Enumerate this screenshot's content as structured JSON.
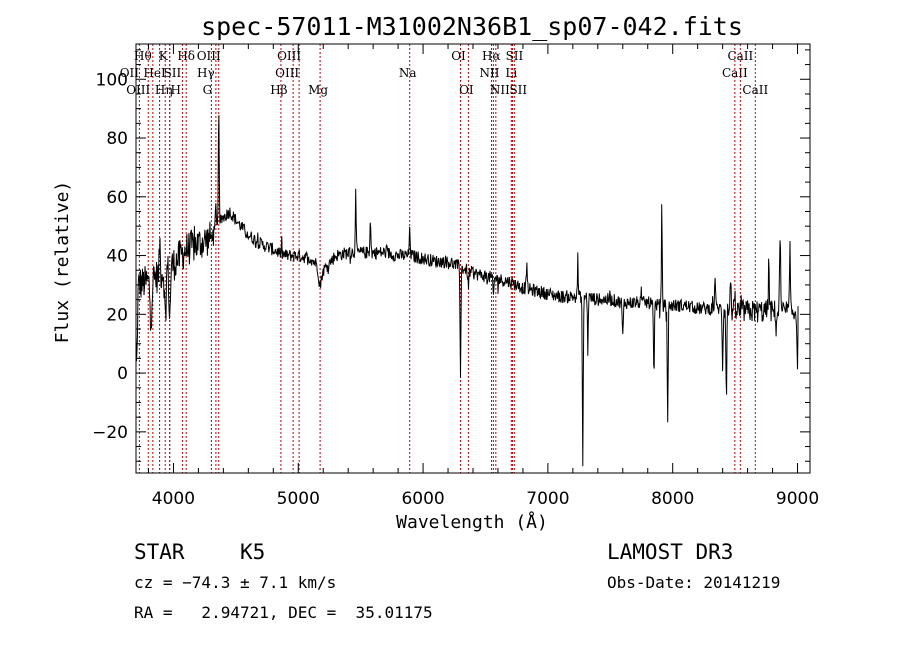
{
  "chart_data": {
    "type": "line",
    "title": "spec-57011-M31002N36B1_sp07-042.fits",
    "xlabel": "Wavelength (Å)",
    "ylabel": "Flux (relative)",
    "xlim": [
      3700,
      9100
    ],
    "ylim": [
      -34,
      112
    ],
    "xticks": [
      {
        "value": 4000,
        "label": "4000"
      },
      {
        "value": 5000,
        "label": "5000"
      },
      {
        "value": 6000,
        "label": "6000"
      },
      {
        "value": 7000,
        "label": "7000"
      },
      {
        "value": 8000,
        "label": "8000"
      },
      {
        "value": 9000,
        "label": "9000"
      }
    ],
    "yticks": [
      {
        "value": -20,
        "label": "−20"
      },
      {
        "value": 0,
        "label": "0"
      },
      {
        "value": 20,
        "label": "20"
      },
      {
        "value": 40,
        "label": "40"
      },
      {
        "value": 60,
        "label": "60"
      },
      {
        "value": 80,
        "label": "80"
      },
      {
        "value": 100,
        "label": "100"
      }
    ],
    "line_color": "#000000",
    "marker_color": "#c00000",
    "line_markers": [
      {
        "wavelength": 3727,
        "label": "OII",
        "row": 1,
        "dx": -10
      },
      {
        "wavelength": 3798,
        "label": "OIII",
        "row": 2,
        "dx": -10
      },
      {
        "wavelength": 3835,
        "label": "Hθ",
        "row": 0,
        "dx": -10
      },
      {
        "wavelength": 3889,
        "label": "HeI",
        "row": 1,
        "dx": -5
      },
      {
        "wavelength": 3934,
        "label": "K",
        "row": 0,
        "dx": -2
      },
      {
        "wavelength": 3970,
        "label": "Hη",
        "row": 2,
        "dx": -6
      },
      {
        "wavelength": 3970,
        "label": "H",
        "row": 2,
        "dx": 6
      },
      {
        "wavelength": 4072,
        "label": "SII",
        "row": 1,
        "dx": -10
      },
      {
        "wavelength": 4102,
        "label": "Hδ",
        "row": 0,
        "dx": 0
      },
      {
        "wavelength": 4304,
        "label": "G",
        "row": 2,
        "dx": -4
      },
      {
        "wavelength": 4340,
        "label": "Hγ",
        "row": 1,
        "dx": -10
      },
      {
        "wavelength": 4363,
        "label": "OIII",
        "row": 0,
        "dx": -10
      },
      {
        "wavelength": 4861,
        "label": "Hβ",
        "row": 2,
        "dx": -2
      },
      {
        "wavelength": 4959,
        "label": "OIII",
        "row": 1,
        "dx": -6
      },
      {
        "wavelength": 5007,
        "label": "OIII",
        "row": 0,
        "dx": -10
      },
      {
        "wavelength": 5175,
        "label": "Mg",
        "row": 2,
        "dx": -2
      },
      {
        "wavelength": 5893,
        "label": "Na",
        "row": 1,
        "dx": -2
      },
      {
        "wavelength": 6300,
        "label": "OI",
        "row": 0,
        "dx": -2
      },
      {
        "wavelength": 6363,
        "label": "OI",
        "row": 2,
        "dx": -2
      },
      {
        "wavelength": 6548,
        "label": "NII",
        "row": 1,
        "dx": -2
      },
      {
        "wavelength": 6563,
        "label": "Hα",
        "row": 0,
        "dx": -2
      },
      {
        "wavelength": 6583,
        "label": "NII",
        "row": 2,
        "dx": 4
      },
      {
        "wavelength": 6707,
        "label": "Li",
        "row": 1,
        "dx": 0
      },
      {
        "wavelength": 6716,
        "label": "SII",
        "row": 0,
        "dx": 2
      },
      {
        "wavelength": 6731,
        "label": "SII",
        "row": 2,
        "dx": 4
      },
      {
        "wavelength": 8498,
        "label": "CaII",
        "row": 1,
        "dx": 0
      },
      {
        "wavelength": 8542,
        "label": "CaII",
        "row": 0,
        "dx": 0
      },
      {
        "wavelength": 8662,
        "label": "CaII",
        "row": 2,
        "dx": 0
      }
    ],
    "continuum": [
      [
        3700,
        30
      ],
      [
        3800,
        31
      ],
      [
        3900,
        34
      ],
      [
        4000,
        37
      ],
      [
        4100,
        42
      ],
      [
        4200,
        44
      ],
      [
        4300,
        46
      ],
      [
        4350,
        50
      ],
      [
        4400,
        53
      ],
      [
        4450,
        55
      ],
      [
        4500,
        52
      ],
      [
        4600,
        47
      ],
      [
        4700,
        44
      ],
      [
        4800,
        42
      ],
      [
        4900,
        40
      ],
      [
        5000,
        40
      ],
      [
        5100,
        39
      ],
      [
        5200,
        35
      ],
      [
        5300,
        40
      ],
      [
        5400,
        41
      ],
      [
        5500,
        41
      ],
      [
        5600,
        41
      ],
      [
        5700,
        41
      ],
      [
        5800,
        40
      ],
      [
        5900,
        40
      ],
      [
        6000,
        39
      ],
      [
        6100,
        38
      ],
      [
        6200,
        38
      ],
      [
        6300,
        36
      ],
      [
        6400,
        34
      ],
      [
        6500,
        33
      ],
      [
        6600,
        32
      ],
      [
        6700,
        31
      ],
      [
        6800,
        29
      ],
      [
        6900,
        28
      ],
      [
        7000,
        27
      ],
      [
        7100,
        26
      ],
      [
        7200,
        26
      ],
      [
        7300,
        26
      ],
      [
        7400,
        25
      ],
      [
        7500,
        25
      ],
      [
        7600,
        24
      ],
      [
        7700,
        24
      ],
      [
        7800,
        24
      ],
      [
        7900,
        23
      ],
      [
        8000,
        23
      ],
      [
        8100,
        23
      ],
      [
        8200,
        22
      ],
      [
        8300,
        22
      ],
      [
        8400,
        22
      ],
      [
        8500,
        21
      ],
      [
        8600,
        21
      ],
      [
        8700,
        21
      ],
      [
        8800,
        21
      ],
      [
        8900,
        21
      ],
      [
        9000,
        21
      ],
      [
        9100,
        21
      ]
    ],
    "features": [
      {
        "wavelength": 3705,
        "depth": -28,
        "width": 8
      },
      {
        "wavelength": 3820,
        "depth": -12,
        "width": 10
      },
      {
        "wavelength": 3890,
        "depth": 12,
        "width": 5
      },
      {
        "wavelength": 3934,
        "depth": -16,
        "width": 8
      },
      {
        "wavelength": 3970,
        "depth": -18,
        "width": 8
      },
      {
        "wavelength": 4363,
        "depth": 40,
        "width": 5
      },
      {
        "wavelength": 4340,
        "depth": 8,
        "width": 6
      },
      {
        "wavelength": 5175,
        "depth": -6,
        "width": 15
      },
      {
        "wavelength": 5460,
        "depth": 20,
        "width": 5
      },
      {
        "wavelength": 5577,
        "depth": 12,
        "width": 5
      },
      {
        "wavelength": 5893,
        "depth": 8,
        "width": 6
      },
      {
        "wavelength": 6300,
        "depth": -36,
        "width": 5
      },
      {
        "wavelength": 6363,
        "depth": -6,
        "width": 5
      },
      {
        "wavelength": 6563,
        "depth": -6,
        "width": 6
      },
      {
        "wavelength": 6830,
        "depth": 8,
        "width": 5
      },
      {
        "wavelength": 7240,
        "depth": 14,
        "width": 4
      },
      {
        "wavelength": 7280,
        "depth": -58,
        "width": 5
      },
      {
        "wavelength": 7320,
        "depth": -20,
        "width": 4
      },
      {
        "wavelength": 7600,
        "depth": -12,
        "width": 6
      },
      {
        "wavelength": 7850,
        "depth": -24,
        "width": 5
      },
      {
        "wavelength": 7913,
        "depth": 38,
        "width": 4
      },
      {
        "wavelength": 7960,
        "depth": -40,
        "width": 5
      },
      {
        "wavelength": 8340,
        "depth": 12,
        "width": 5
      },
      {
        "wavelength": 8400,
        "depth": -20,
        "width": 5
      },
      {
        "wavelength": 8430,
        "depth": -30,
        "width": 5
      },
      {
        "wavelength": 8465,
        "depth": 12,
        "width": 5
      },
      {
        "wavelength": 8770,
        "depth": 18,
        "width": 5
      },
      {
        "wavelength": 8830,
        "depth": -6,
        "width": 5
      },
      {
        "wavelength": 8860,
        "depth": 25,
        "width": 5
      },
      {
        "wavelength": 8940,
        "depth": 20,
        "width": 5
      },
      {
        "wavelength": 9000,
        "depth": -20,
        "width": 5
      }
    ]
  },
  "info": {
    "object_type": "STAR",
    "subclass": "K5",
    "survey": "LAMOST DR3",
    "cz": "cz = −74.3 ± 7.1 km/s",
    "obs_date": "Obs-Date: 20141219",
    "coords": "RA =   2.94721, DEC =  35.01175"
  }
}
